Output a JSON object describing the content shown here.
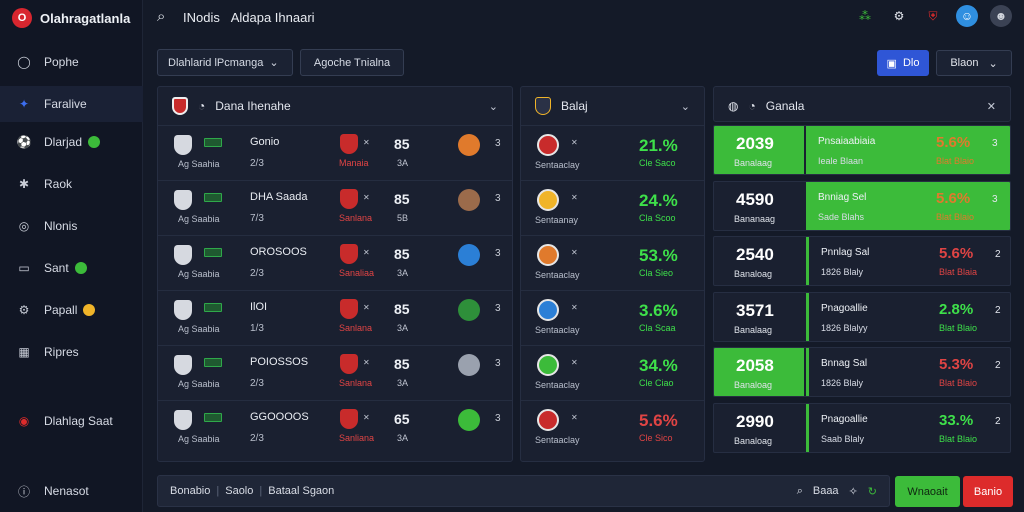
{
  "app": {
    "brand": "Olahragatlanla",
    "logo_letter": "O"
  },
  "topbar": {
    "title_a": "INodis",
    "title_b": "Aldapa Ihnaari"
  },
  "sidebar": {
    "items": [
      {
        "label": "Pophe",
        "icon": "circle-icon"
      },
      {
        "label": "Faralive",
        "icon": "controller-icon",
        "active": true
      },
      {
        "label": "Dlarjad",
        "icon": "football-icon",
        "badge": "●",
        "badge_color": "#3cbb3a"
      },
      {
        "label": "Raok",
        "icon": "star-icon"
      },
      {
        "label": "Nlonis",
        "icon": "target-icon"
      },
      {
        "label": "Sant",
        "icon": "flag-icon",
        "badge": "●",
        "badge_color": "#3cbb3a"
      },
      {
        "label": "Papall",
        "icon": "gear-icon",
        "badge": "●",
        "badge_color": "#f0b429"
      },
      {
        "label": "Ripres",
        "icon": "grid-icon"
      },
      {
        "label": "Dlahlag Saat",
        "icon": "record-icon"
      },
      {
        "label": "Nenasot",
        "icon": "info-icon"
      }
    ]
  },
  "toolbar": {
    "filter1": "Dlahlarid lPcmanga",
    "filter2": "Agoche Tnialna",
    "blue_btn": "Dlo",
    "select": "Blaon"
  },
  "panel1": {
    "title": "Dana Ihenahe",
    "rows": [
      {
        "sub": "Ag Saahia",
        "name": "Gonio",
        "frac": "2/3",
        "cat": "Manaia",
        "bx": "85",
        "big": "85",
        "small": "3A",
        "count": "3",
        "ball_color": "#e07a2c"
      },
      {
        "sub": "Ag Saabia",
        "name": "DHA Saada",
        "frac": "7/3",
        "cat": "Sanlana",
        "bx": "85",
        "big": "85",
        "small": "5B",
        "count": "3",
        "ball_color": "#9b6b4b"
      },
      {
        "sub": "Ag Saabia",
        "name": "OROSOOS",
        "frac": "2/3",
        "cat": "Sanaliaa",
        "bx": "85",
        "big": "85",
        "small": "3A",
        "count": "3",
        "ball_color": "#2b7fd6"
      },
      {
        "sub": "Ag Saabia",
        "name": "IlOI",
        "frac": "1/3",
        "cat": "Sanlana",
        "bx": "85",
        "big": "85",
        "small": "3A",
        "count": "3",
        "ball_color": "#2e8f3a"
      },
      {
        "sub": "Ag Saabia",
        "name": "POIOSSOS",
        "frac": "2/3",
        "cat": "Sanlana",
        "bx": "85",
        "big": "85",
        "small": "3A",
        "count": "3",
        "ball_color": "#9aa1ae"
      },
      {
        "sub": "Ag Saabia",
        "name": "GGOOOOS",
        "frac": "2/3",
        "cat": "Sanliana",
        "bx": "65",
        "big": "65",
        "small": "3A",
        "count": "3",
        "ball_color": "#3cbb3a"
      }
    ]
  },
  "panel2": {
    "title": "Balaj",
    "rows": [
      {
        "cm": "Sentaaclay",
        "pct": "21.%",
        "ps": "Cle Saco",
        "color": "#3ee04a",
        "logo_color": "#c82b2b"
      },
      {
        "cm": "Sentaanay",
        "pct": "24.%",
        "ps": "Cla Scoo",
        "color": "#3ee04a",
        "logo_color": "#f0b429"
      },
      {
        "cm": "Sentaaclay",
        "pct": "53.%",
        "ps": "Cla Sieo",
        "color": "#3ee04a",
        "logo_color": "#e07a2c"
      },
      {
        "cm": "Sentaaclay",
        "pct": "3.6%",
        "ps": "Cla Scaa",
        "color": "#3ee04a",
        "logo_color": "#2b7fd6"
      },
      {
        "cm": "Sentaaclay",
        "pct": "34.%",
        "ps": "Cle Ciao",
        "color": "#3ee04a",
        "logo_color": "#3cbb3a"
      },
      {
        "cm": "Sentaaclay",
        "pct": "5.6%",
        "ps": "Cle Sico",
        "color": "#e04444",
        "logo_color": "#c82b2b"
      }
    ]
  },
  "panel3": {
    "title": "Ganala",
    "cards": [
      {
        "score": "2039",
        "slbl": "Banalaag",
        "title": "Pnsaiaabiaia",
        "st": "Ieale Blaan",
        "cp": "5.6%",
        "cps": "Blat Blaio",
        "cp_color": "#e07a2c",
        "cn": "3",
        "left_green": true,
        "right_green": true
      },
      {
        "score": "4590",
        "slbl": "Bananaag",
        "title": "Bnniag Sel",
        "st": "Sade Blahs",
        "cp": "5.6%",
        "cps": "Blat Blaio",
        "cp_color": "#e07a2c",
        "cn": "3",
        "left_green": false,
        "right_green": true
      },
      {
        "score": "2540",
        "slbl": "Banaloag",
        "title": "Pnnlag Sal",
        "st": "1826 Blaly",
        "cp": "5.6%",
        "cps": "Blat Blaia",
        "cp_color": "#e04444",
        "cn": "2",
        "left_green": false,
        "right_green": false
      },
      {
        "score": "3571",
        "slbl": "Banalaag",
        "title": "Pnagoallie",
        "st": "1826 Blalyy",
        "cp": "2.8%",
        "cps": "Blat Blaio",
        "cp_color": "#3ee04a",
        "cn": "2",
        "left_green": false,
        "right_green": false
      },
      {
        "score": "2058",
        "slbl": "Banaloag",
        "title": "Bnnag Sal",
        "st": "1826 Blaly",
        "cp": "5.3%",
        "cps": "Blat Blaio",
        "cp_color": "#e04444",
        "cn": "2",
        "left_green": true,
        "right_green": false
      },
      {
        "score": "2990",
        "slbl": "Banaloag",
        "title": "Pnagoallie",
        "st": "Saab Blaly",
        "cp": "33.%",
        "cps": "Blat Blaio",
        "cp_color": "#3ee04a",
        "cn": "2",
        "left_green": false,
        "right_green": false
      }
    ]
  },
  "bottom": {
    "item1": "Bonabio",
    "item2": "Saolo",
    "item3": "Bataal Sgaon",
    "search_label": "Baaa",
    "green_btn": "Wnaoait",
    "red_btn": "Banio"
  },
  "colors": {
    "accent_green": "#3cbb3a",
    "accent_red": "#dd2b2b",
    "accent_blue": "#2f56d6",
    "bg": "#141a28"
  }
}
